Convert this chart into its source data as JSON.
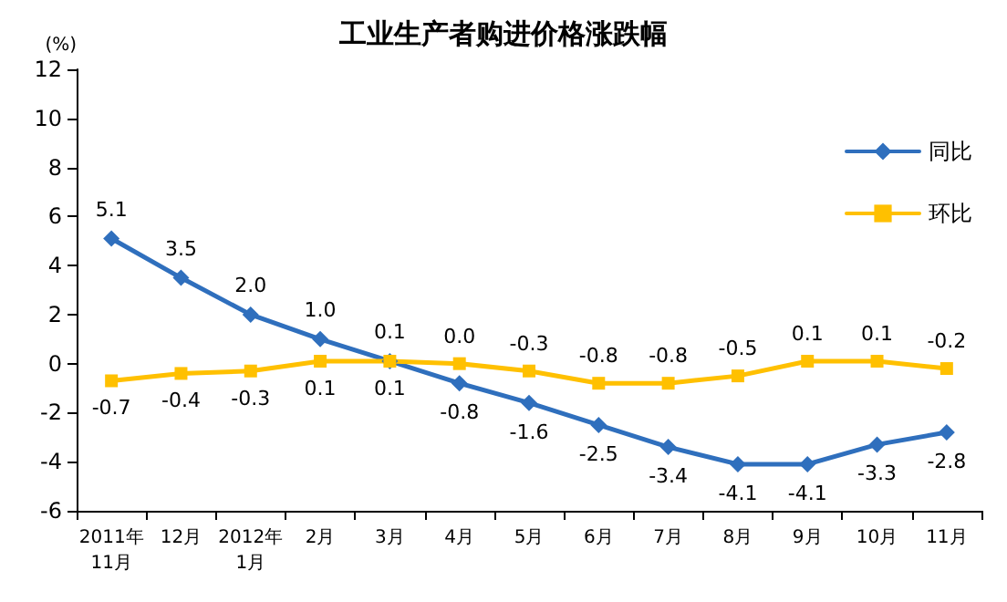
{
  "chart_data": {
    "type": "line",
    "title": "工业生产者购进价格涨跌幅",
    "ylabel": "(%)",
    "categories": [
      "2011年\n11月",
      "12月",
      "2012年\n1月",
      "2月",
      "3月",
      "4月",
      "5月",
      "6月",
      "7月",
      "8月",
      "9月",
      "10月",
      "11月"
    ],
    "series": [
      {
        "name": "同比",
        "color": "#2f6fbd",
        "marker": "diamond",
        "values": [
          5.1,
          3.5,
          2.0,
          1.0,
          0.1,
          -0.8,
          -1.6,
          -2.5,
          -3.4,
          -4.1,
          -4.1,
          -3.3,
          -2.8
        ],
        "value_labels": [
          "5.1",
          "3.5",
          "2.0",
          "1.0",
          "0.1",
          "-0.8",
          "-1.6",
          "-2.5",
          "-3.4",
          "-4.1",
          "-4.1",
          "-3.3",
          "-2.8"
        ]
      },
      {
        "name": "环比",
        "color": "#ffc000",
        "marker": "square",
        "values": [
          -0.7,
          -0.4,
          -0.3,
          0.1,
          0.1,
          0.0,
          -0.3,
          -0.8,
          -0.8,
          -0.5,
          0.1,
          0.1,
          -0.2
        ],
        "value_labels": [
          "-0.7",
          "-0.4",
          "-0.3",
          "0.1",
          "0.1",
          "0.0",
          "-0.3",
          "-0.8",
          "-0.8",
          "-0.5",
          "0.1",
          "0.1",
          "-0.2"
        ]
      }
    ],
    "ylim": [
      -6,
      12
    ],
    "yticks": [
      -6,
      -4,
      -2,
      0,
      2,
      4,
      6,
      8,
      10,
      12
    ],
    "grid": false,
    "legend": "top right",
    "line_style": "solid"
  }
}
